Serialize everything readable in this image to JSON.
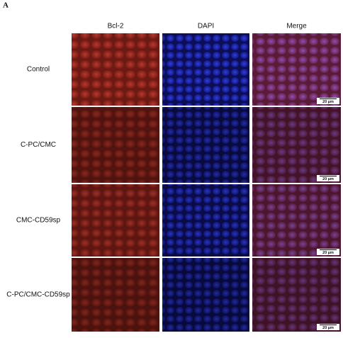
{
  "panel_label": "A",
  "columns": [
    "Bcl-2",
    "DAPI",
    "Merge"
  ],
  "rows": [
    {
      "label": "Control",
      "scale_bar": "20 µm"
    },
    {
      "label": "C-PC/CMC",
      "scale_bar": "20 µm"
    },
    {
      "label": "CMC-CD59sp",
      "scale_bar": "20 µm"
    },
    {
      "label": "C-PC/CMC-CD59sp",
      "scale_bar": "20 µm"
    }
  ]
}
